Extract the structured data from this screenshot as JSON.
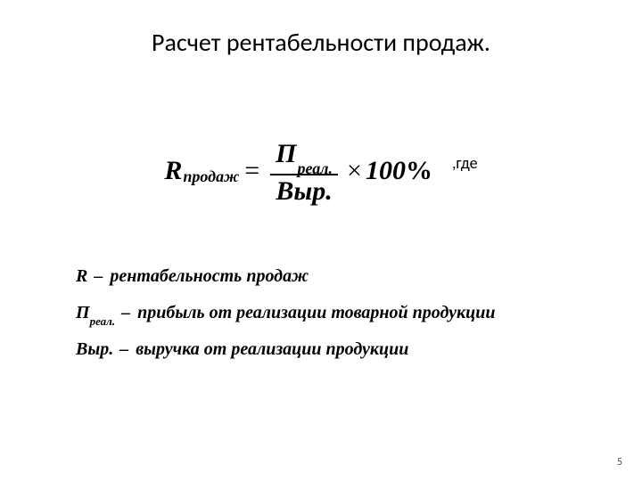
{
  "title": "Расчет рентабельности продаж.",
  "formula": {
    "lhs_var": "R",
    "lhs_sub": "продаж",
    "eq": "=",
    "num_var": "П",
    "num_sub": "реал.",
    "den": "Выр.",
    "mult": "×",
    "hundred": "100",
    "percent": "%",
    "suffix": ",где"
  },
  "definitions": [
    {
      "sym": "R",
      "sub": "",
      "dash": "–",
      "text": "рентабельность продаж"
    },
    {
      "sym": "П",
      "sub": "реал.",
      "dash": "–",
      "text": "прибыль от реализации товарной продукции"
    },
    {
      "sym": "Выр.",
      "sub": "",
      "dash": "–",
      "text": "выручка от реализации продукции"
    }
  ],
  "page_number": "5"
}
